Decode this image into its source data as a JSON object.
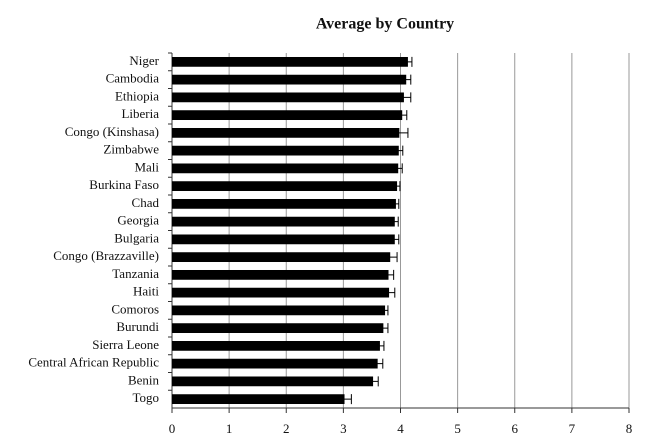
{
  "chart_data": {
    "type": "bar",
    "orientation": "horizontal",
    "title": "Average by Country",
    "categories": [
      "Niger",
      "Cambodia",
      "Ethiopia",
      "Liberia",
      "Congo (Kinshasa)",
      "Zimbabwe",
      "Mali",
      "Burkina Faso",
      "Chad",
      "Georgia",
      "Bulgaria",
      "Congo (Brazzaville)",
      "Tanzania",
      "Haiti",
      "Comoros",
      "Burundi",
      "Sierra Leone",
      "Central African Republic",
      "Benin",
      "Togo"
    ],
    "values": [
      4.13,
      4.1,
      4.06,
      4.03,
      3.98,
      3.97,
      3.96,
      3.94,
      3.92,
      3.9,
      3.9,
      3.82,
      3.79,
      3.8,
      3.73,
      3.7,
      3.64,
      3.6,
      3.52,
      3.02
    ],
    "errors": [
      0.07,
      0.08,
      0.12,
      0.08,
      0.15,
      0.07,
      0.07,
      0.05,
      0.05,
      0.06,
      0.07,
      0.12,
      0.09,
      0.1,
      0.05,
      0.08,
      0.07,
      0.09,
      0.09,
      0.12
    ],
    "color": "#000000",
    "xlim": [
      0,
      8
    ],
    "xticks": [
      0,
      1,
      2,
      3,
      4,
      5,
      6,
      7,
      8
    ],
    "grid": true
  }
}
